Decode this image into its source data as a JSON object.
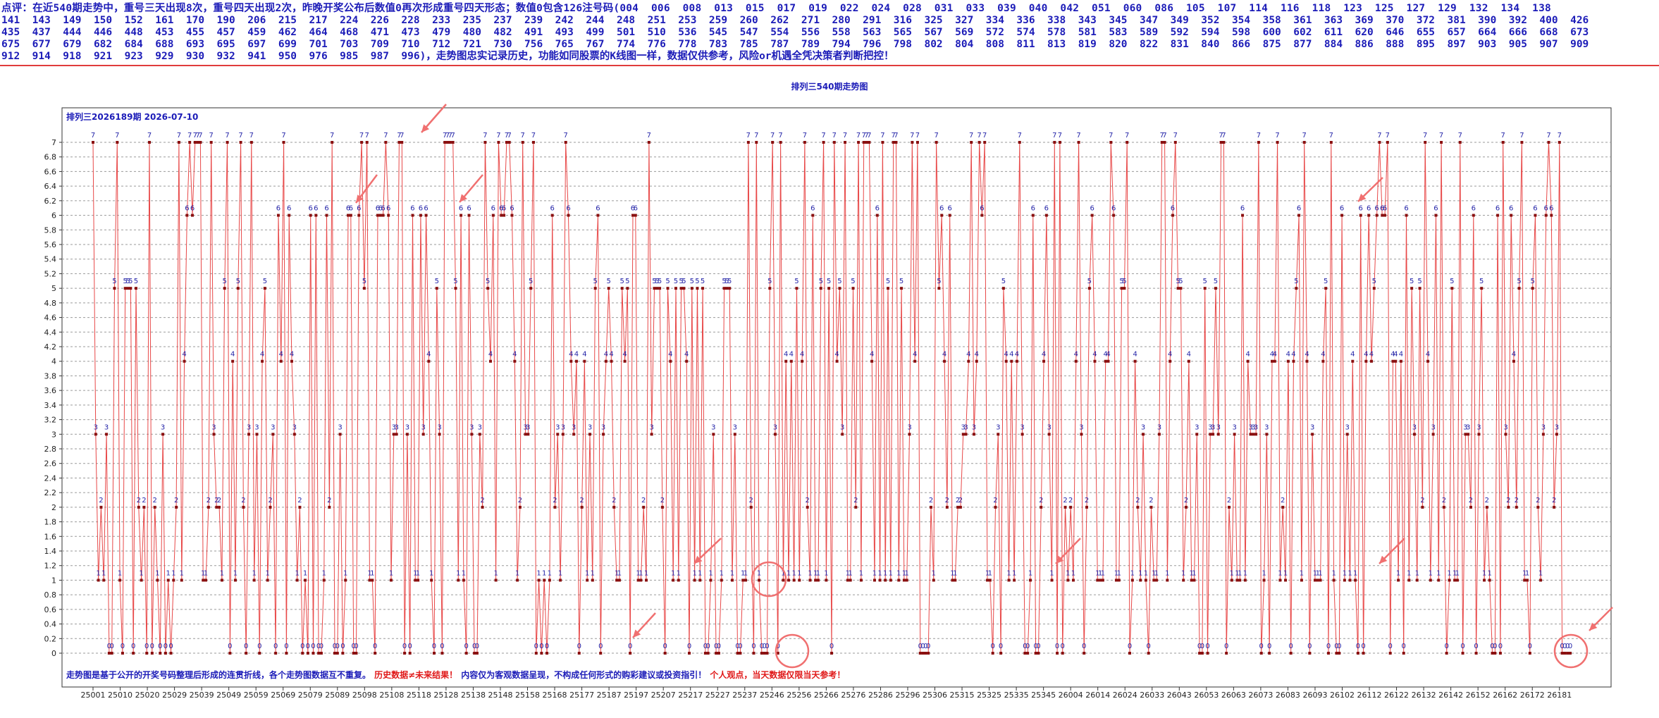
{
  "header": {
    "comment": "点评：在近540期走势中，重号三天出现8次，重号四天出现2次，昨晚开奖公布后数值0再次形成重号四天形态；数值0包含126注号码(004  006  008  013  015  017  019  022  024  028  031  033  039  040  042  051  060  086  105  107  114  116  118  123  125  127  129  132  134  138",
    "lines": [
      "141  143  149  150  152  161  170  190  206  215  217  224  226  228  233  235  237  239  242  244  248  251  253  259  260  262  271  280  291  316  325  327  334  336  338  343  345  347  349  352  354  358  361  363  369  370  372  381  390  392  400  426",
      "435  437  444  446  448  453  455  457  459  462  464  468  471  473  479  480  482  491  493  499  501  510  536  545  547  554  556  558  563  565  567  569  572  574  578  581  583  589  592  594  598  600  602  611  620  646  655  657  664  666  668  673",
      "675  677  679  682  684  688  693  695  697  699  701  703  709  710  712  721  730  756  765  767  774  776  778  783  785  787  789  794  796  798  802  804  808  811  813  819  820  822  831  840  866  875  877  884  886  888  895  897  903  905  907  909",
      "912  914  918  921  923  929  930  932  941  950  976  985  987  996)，走势图忠实记录历史，功能如同股票的K线图一样，数据仅供参考，风险or机遇全凭决策者判断把控！"
    ]
  },
  "chart_title": "排列三540期走势图",
  "chart_subtitle": "排列三2026189期  2026-07-10",
  "footer": {
    "part1": "走势图是基于公开的开奖号码整理后形成的连贯折线，各个走势图数据互不重复。",
    "part2": "历史数据≠未来结果！",
    "part3": "内容仅为客观数据呈现，不构成任何形式的购彩建议或投资指引！",
    "part4": "个人观点，当天数据仅限当天参考！"
  },
  "colors": {
    "line": "#e84848",
    "dot": "#8a1010",
    "label": "#2424a8",
    "grid": "#9a9a9a",
    "annotation": "#f07070"
  },
  "chart_data": {
    "type": "line",
    "title": "排列三540期走势图",
    "subtitle": "排列三2026189期  2026-07-10",
    "ylim": [
      0,
      7
    ],
    "yticks": [
      0,
      0.2,
      0.4,
      0.6,
      0.8,
      1,
      1.2,
      1.4,
      1.6,
      1.8,
      2,
      2.2,
      2.4,
      2.6,
      2.8,
      3,
      3.2,
      3.4,
      3.6,
      3.8,
      4,
      4.2,
      4.4,
      4.6,
      4.8,
      5,
      5.2,
      5.4,
      5.6,
      5.8,
      6,
      6.2,
      6.4,
      6.6,
      6.8,
      7
    ],
    "x_tick_labels": [
      "25001",
      "25010",
      "25020",
      "25029",
      "25039",
      "25049",
      "25059",
      "25069",
      "25079",
      "25089",
      "25098",
      "25108",
      "25118",
      "25128",
      "25138",
      "25148",
      "25158",
      "25168",
      "25177",
      "25187",
      "25197",
      "25207",
      "25217",
      "25227",
      "25237",
      "25246",
      "25256",
      "25266",
      "25276",
      "25286",
      "25296",
      "25306",
      "25315",
      "25325",
      "25335",
      "25345",
      "26004",
      "26014",
      "26024",
      "26033",
      "26043",
      "26053",
      "26063",
      "26073",
      "26083",
      "26093",
      "26102",
      "26112",
      "26122",
      "26132",
      "26142",
      "26152",
      "26162",
      "26172",
      "26181"
    ],
    "grid": true,
    "value_labels": true,
    "series_note": "540 consecutive draw values (0–7); last four values are 0",
    "values": [
      7,
      3,
      1,
      2,
      1,
      3,
      0,
      0,
      5,
      7,
      1,
      0,
      5,
      5,
      5,
      0,
      5,
      2,
      1,
      2,
      0,
      7,
      0,
      2,
      1,
      0,
      3,
      0,
      1,
      0,
      1,
      2,
      7,
      1,
      4,
      6,
      7,
      6,
      7,
      7,
      7,
      1,
      1,
      2,
      7,
      3,
      2,
      2,
      1,
      5,
      7,
      0,
      4,
      1,
      5,
      7,
      2,
      0,
      3,
      7,
      1,
      3,
      0,
      4,
      5,
      1,
      2,
      3,
      0,
      6,
      4,
      7,
      0,
      6,
      4,
      3,
      1,
      2,
      0,
      1,
      0,
      6,
      0,
      6,
      0,
      0,
      1,
      6,
      2,
      7,
      0,
      0,
      3,
      0,
      1,
      6,
      6,
      0,
      0,
      6,
      7,
      5,
      7,
      1,
      1,
      0,
      6,
      6,
      6,
      7,
      6,
      1,
      3,
      3,
      7,
      7,
      0,
      3,
      0,
      6,
      1,
      1,
      6,
      3,
      6,
      4,
      1,
      0,
      5,
      3,
      0,
      7,
      7,
      7,
      7,
      5,
      1,
      6,
      1,
      0,
      6,
      3,
      0,
      0,
      3,
      2,
      7,
      5,
      4,
      6,
      1,
      7,
      6,
      6,
      7,
      7,
      6,
      4,
      1,
      2,
      7,
      3,
      3,
      5,
      7,
      0,
      1,
      0,
      1,
      0,
      1,
      6,
      2,
      3,
      1,
      3,
      7,
      6,
      4,
      3,
      4,
      0,
      2,
      4,
      1,
      3,
      1,
      5,
      6,
      0,
      3,
      4,
      5,
      4,
      2,
      1,
      1,
      5,
      4,
      5,
      0,
      6,
      6,
      1,
      1,
      2,
      1,
      7,
      3,
      5,
      5,
      5,
      2,
      0,
      5,
      4,
      1,
      5,
      1,
      5,
      5,
      4,
      0,
      5,
      1,
      5,
      1,
      5,
      0,
      0,
      1,
      3,
      0,
      0,
      1,
      5,
      5,
      5,
      1,
      3,
      0,
      0,
      1,
      1,
      7,
      2,
      0,
      7,
      1,
      0,
      0,
      0,
      5,
      7,
      3,
      0,
      7,
      1,
      4,
      1,
      4,
      1,
      5,
      1,
      4,
      7,
      2,
      1,
      6,
      1,
      1,
      5,
      7,
      1,
      5,
      0,
      7,
      4,
      5,
      3,
      7,
      1,
      1,
      5,
      2,
      7,
      1,
      7,
      7,
      7,
      4,
      1,
      6,
      1,
      7,
      1,
      5,
      1,
      7,
      7,
      1,
      5,
      1,
      1,
      3,
      7,
      4,
      7,
      0,
      0,
      0,
      0,
      2,
      1,
      7,
      5,
      6,
      4,
      2,
      6,
      1,
      1,
      2,
      2,
      3,
      3,
      4,
      7,
      3,
      4,
      7,
      6,
      7,
      1,
      1,
      0,
      2,
      3,
      0,
      5,
      4,
      1,
      4,
      1,
      4,
      7,
      3,
      0,
      0,
      1,
      6,
      0,
      0,
      2,
      4,
      6,
      3,
      1,
      7,
      0,
      7,
      0,
      2,
      1,
      2,
      1,
      4,
      7,
      3,
      0,
      2,
      5,
      6,
      4,
      1,
      1,
      1,
      4,
      4,
      7,
      6,
      1,
      1,
      5,
      5,
      7,
      0,
      1,
      4,
      2,
      1,
      3,
      1,
      0,
      2,
      1,
      1,
      3,
      7,
      7,
      1,
      4,
      6,
      7,
      5,
      5,
      1,
      2,
      4,
      1,
      1,
      3,
      0,
      0,
      5,
      0,
      3,
      3,
      5,
      3,
      7,
      7,
      0,
      2,
      1,
      3,
      1,
      1,
      6,
      1,
      4,
      3,
      3,
      3,
      7,
      0,
      1,
      3,
      0,
      4,
      4,
      7,
      1,
      2,
      1,
      4,
      0,
      4,
      5,
      6,
      1,
      7,
      4,
      0,
      3,
      1,
      1,
      1,
      4,
      5,
      0,
      7,
      1,
      0,
      0,
      6,
      1,
      3,
      1,
      4,
      1,
      0,
      6,
      0,
      4,
      6,
      4,
      5,
      6,
      7,
      6,
      6,
      7,
      0,
      4,
      4,
      1,
      4,
      0,
      6,
      1,
      5,
      3,
      1,
      5,
      2,
      7,
      4,
      1,
      3,
      6,
      1,
      7,
      2,
      0,
      1,
      5,
      1,
      1,
      7,
      0,
      3,
      3,
      2,
      6,
      0,
      3,
      5,
      1,
      2,
      1,
      0,
      0,
      6,
      0,
      7,
      3,
      2,
      6,
      4,
      2,
      5,
      7,
      1,
      1,
      0,
      5,
      6,
      2,
      1,
      3,
      6,
      7,
      6,
      2,
      3,
      7,
      0,
      0,
      0,
      0
    ]
  }
}
